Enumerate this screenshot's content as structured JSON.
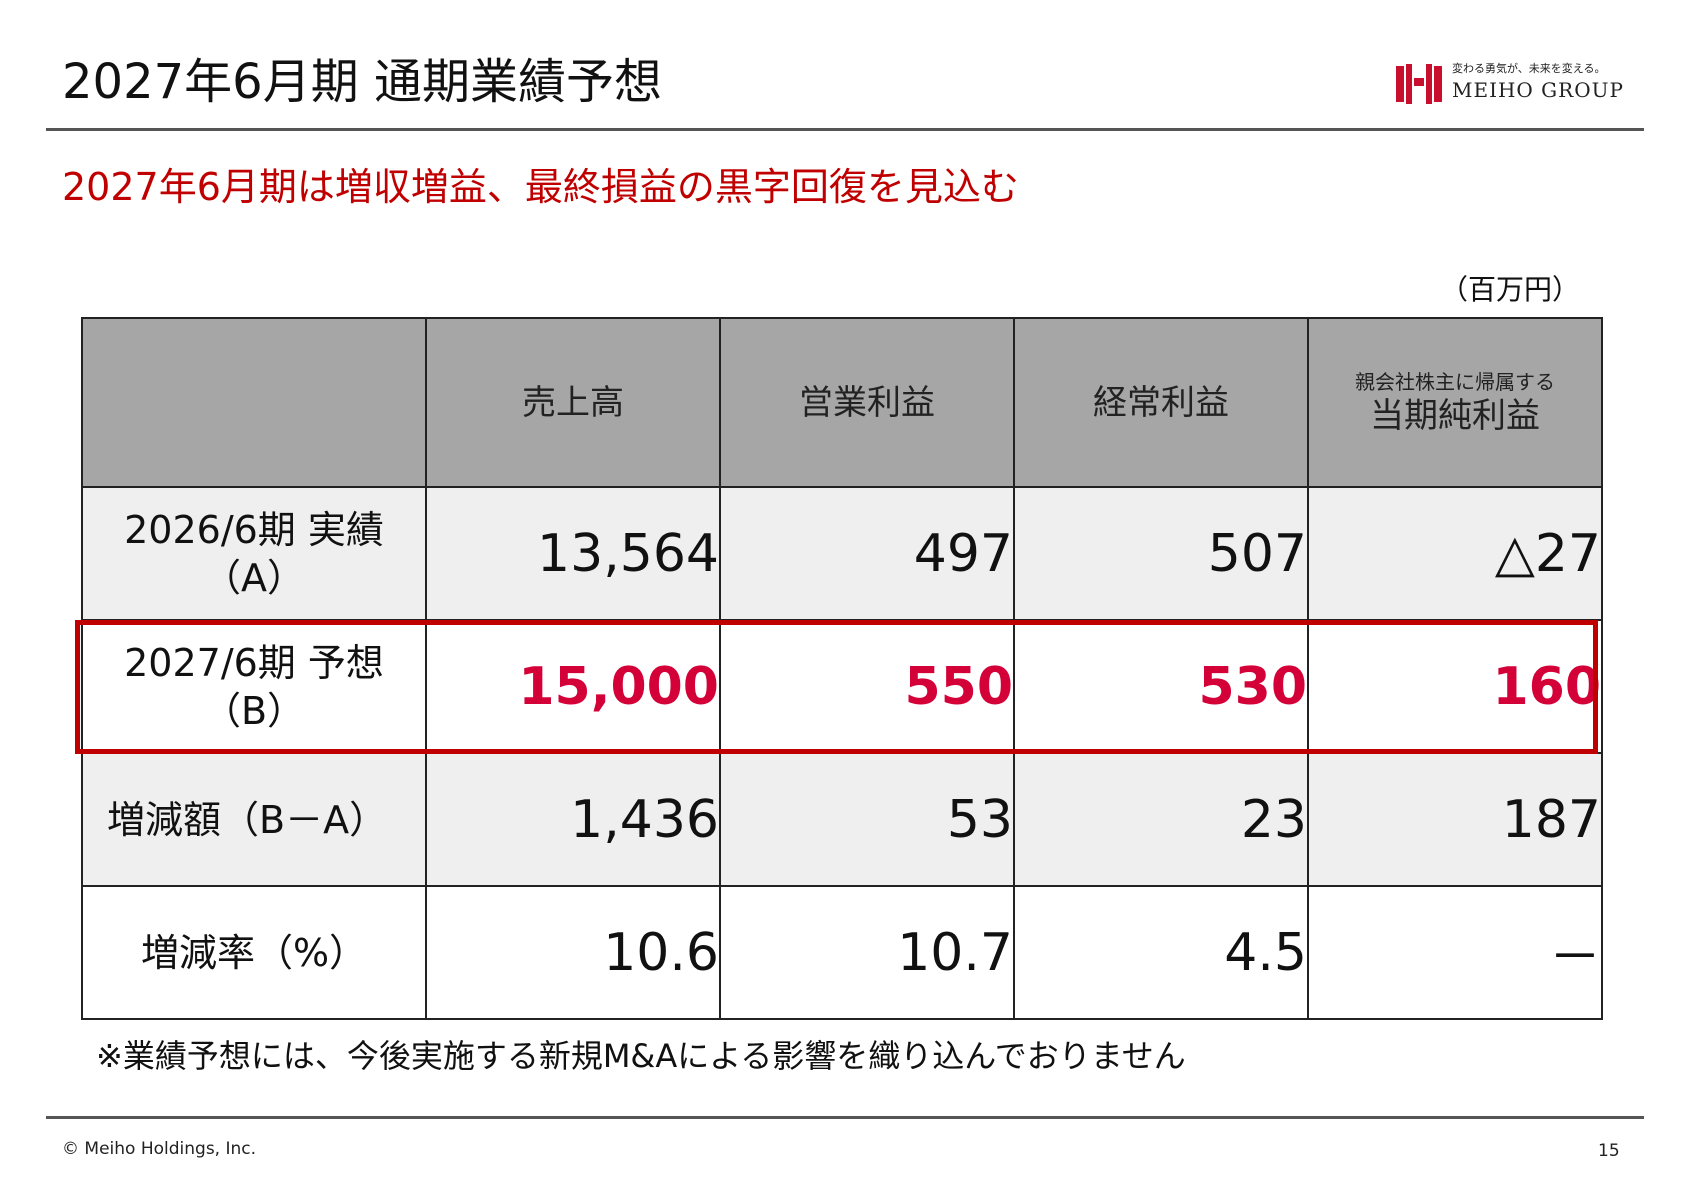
{
  "header": {
    "title": "2027年6月期 通期業績予想",
    "logo_tagline": "変わる勇気が、未来を変える。",
    "logo_name": "MEIHO GROUP"
  },
  "subtitle": "2027年6月期は増収増益、最終損益の黒字回復を見込む",
  "unit": "（百万円）",
  "table": {
    "columns": [
      {
        "main": "売上高",
        "small": ""
      },
      {
        "main": "営業利益",
        "small": ""
      },
      {
        "main": "経常利益",
        "small": ""
      },
      {
        "main": "当期純利益",
        "small": "親会社株主に帰属する"
      }
    ],
    "rows": [
      {
        "label_line1": "2026/6期 実績",
        "label_line2": "（A）",
        "values": [
          "13,564",
          "497",
          "507",
          "△27"
        ]
      },
      {
        "label_line1": "2027/6期 予想",
        "label_line2": "（B）",
        "values": [
          "15,000",
          "550",
          "530",
          "160"
        ]
      },
      {
        "label_line1": "増減額（B－A）",
        "label_line2": "",
        "values": [
          "1,436",
          "53",
          "23",
          "187"
        ]
      },
      {
        "label_line1": "増減率（%）",
        "label_line2": "",
        "values": [
          "10.6",
          "10.7",
          "4.5",
          "－"
        ]
      }
    ]
  },
  "footnote": "※業績予想には、今後実施する新規M&Aによる影響を織り込んでおりません",
  "footer": {
    "copyright": "© Meiho Holdings, Inc.",
    "page_number": "15"
  },
  "colors": {
    "accent_red": "#c00000",
    "forecast_value": "#d40038",
    "header_gray": "#a6a6a6",
    "row_shade": "#efefef"
  }
}
